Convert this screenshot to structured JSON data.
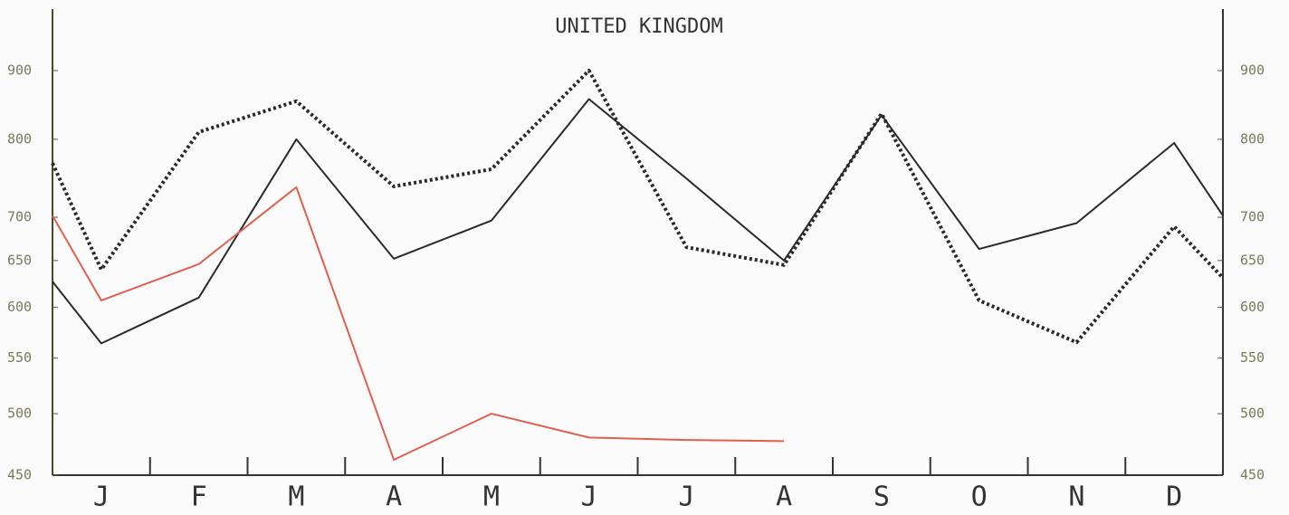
{
  "chart_data": {
    "type": "line",
    "title": "UNITED KINGDOM",
    "x": [
      0.5,
      1,
      2,
      3,
      4,
      5,
      6,
      7,
      8,
      9,
      10,
      11,
      12,
      12.5
    ],
    "xlim": [
      0.5,
      12.5
    ],
    "xticks": [
      {
        "value": 1,
        "label": "J"
      },
      {
        "value": 2,
        "label": "F"
      },
      {
        "value": 3,
        "label": "M"
      },
      {
        "value": 4,
        "label": "A"
      },
      {
        "value": 5,
        "label": "M"
      },
      {
        "value": 6,
        "label": "J"
      },
      {
        "value": 7,
        "label": "J"
      },
      {
        "value": 8,
        "label": "A"
      },
      {
        "value": 9,
        "label": "S"
      },
      {
        "value": 10,
        "label": "O"
      },
      {
        "value": 11,
        "label": "N"
      },
      {
        "value": 12,
        "label": "D"
      }
    ],
    "ylim": [
      450,
      1000
    ],
    "yscale": "log",
    "yticks": [
      450,
      500,
      550,
      600,
      650,
      700,
      800,
      900
    ],
    "series": [
      {
        "color": "#2a2a2a",
        "style": "solid",
        "values": [
          627,
          564,
          610,
          800,
          652,
          696,
          857,
          748,
          650,
          834,
          663,
          693,
          795,
          702
        ]
      },
      {
        "color": "#2a2a2a",
        "style": "dotted",
        "values": [
          768,
          640,
          810,
          854,
          738,
          760,
          900,
          665,
          645,
          836,
          607,
          565,
          689,
          631
        ]
      },
      {
        "color": "#e0604f",
        "style": "solid",
        "values": [
          702,
          607,
          646,
          737,
          462,
          500,
          480,
          478,
          477,
          null,
          null,
          null,
          null,
          null
        ]
      }
    ]
  }
}
